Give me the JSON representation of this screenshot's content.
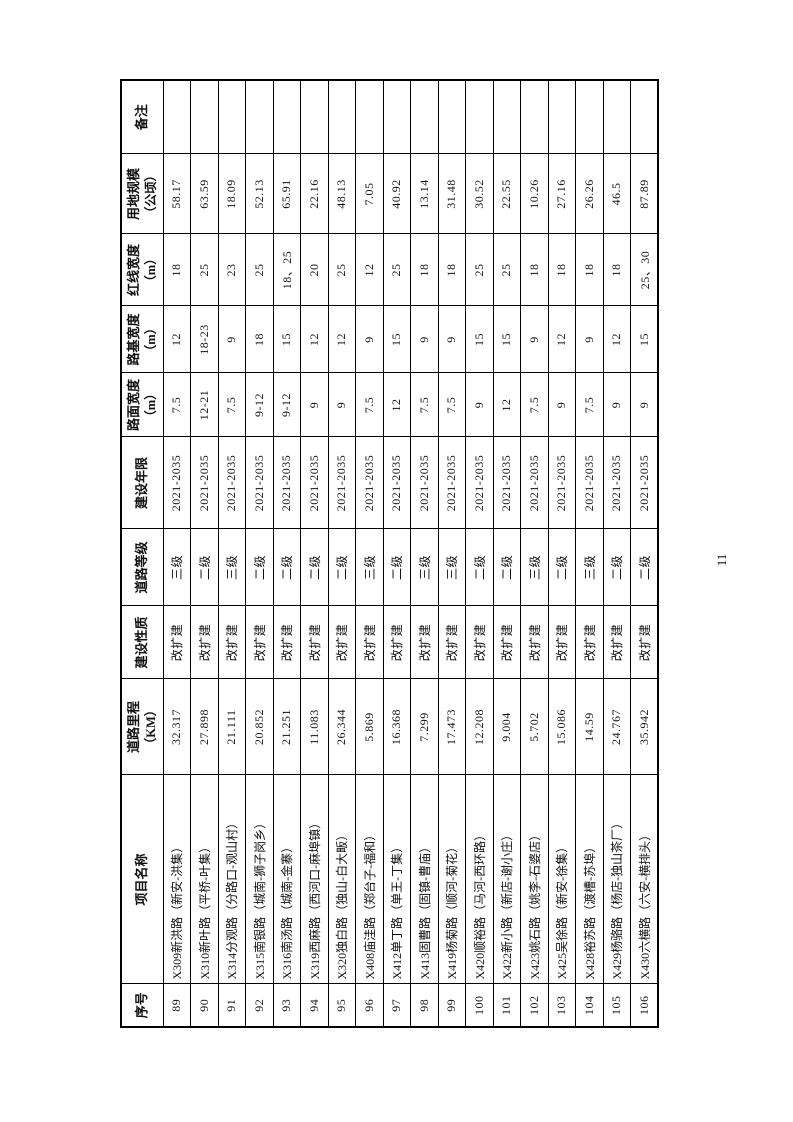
{
  "page": {
    "number": "11"
  },
  "table": {
    "headers": [
      {
        "label": "序号",
        "unit": ""
      },
      {
        "label": "项目名称",
        "unit": ""
      },
      {
        "label": "道路里程",
        "unit": "（KM）"
      },
      {
        "label": "建设性质",
        "unit": ""
      },
      {
        "label": "道路等级",
        "unit": ""
      },
      {
        "label": "建设年限",
        "unit": ""
      },
      {
        "label": "路面宽度",
        "unit": "（m）"
      },
      {
        "label": "路基宽度",
        "unit": "（m）"
      },
      {
        "label": "红线宽度",
        "unit": "（m）"
      },
      {
        "label": "用地规模",
        "unit": "（公顷）"
      },
      {
        "label": "备注",
        "unit": ""
      }
    ],
    "rows": [
      [
        "89",
        "X309新洪路（新安-洪集）",
        "32.317",
        "改扩建",
        "三级",
        "2021-2035",
        "7.5",
        "12",
        "18",
        "58.17",
        ""
      ],
      [
        "90",
        "X310新叶路（平桥-叶集）",
        "27.898",
        "改扩建",
        "二级",
        "2021-2035",
        "12-21",
        "18-23",
        "25",
        "63.59",
        ""
      ],
      [
        "91",
        "X314分观路（分路口-观山村）",
        "21.111",
        "改扩建",
        "三级",
        "2021-2035",
        "7.5",
        "9",
        "23",
        "18.09",
        ""
      ],
      [
        "92",
        "X315南银路（城南-狮子岗乡）",
        "20.852",
        "改扩建",
        "二级",
        "2021-2035",
        "9-12",
        "18",
        "25",
        "52.13",
        ""
      ],
      [
        "93",
        "X316南汤路（城南-金寨）",
        "21.251",
        "改扩建",
        "二级",
        "2021-2035",
        "9-12",
        "15",
        "18、25",
        "65.91",
        ""
      ],
      [
        "94",
        "X319西麻路（西河口-麻埠镇）",
        "11.083",
        "改扩建",
        "二级",
        "2021-2035",
        "9",
        "12",
        "20",
        "22.16",
        ""
      ],
      [
        "95",
        "X320独白路（独山-白大畈）",
        "26.344",
        "改扩建",
        "二级",
        "2021-2035",
        "9",
        "12",
        "25",
        "48.13",
        ""
      ],
      [
        "96",
        "X408庙洼路（郑台子-福和）",
        "5.869",
        "改扩建",
        "三级",
        "2021-2035",
        "7.5",
        "9",
        "12",
        "7.05",
        ""
      ],
      [
        "97",
        "X412单丁路（单王-丁集）",
        "16.368",
        "改扩建",
        "二级",
        "2021-2035",
        "12",
        "15",
        "25",
        "40.92",
        ""
      ],
      [
        "98",
        "X413固曹路（固镇-曹庙）",
        "7.299",
        "改扩建",
        "三级",
        "2021-2035",
        "7.5",
        "9",
        "18",
        "13.14",
        ""
      ],
      [
        "99",
        "X419杨菊路（顺河-菊花）",
        "17.473",
        "改扩建",
        "三级",
        "2021-2035",
        "7.5",
        "9",
        "18",
        "31.48",
        ""
      ],
      [
        "100",
        "X420顺裕路（马河-西环路）",
        "12.208",
        "改扩建",
        "二级",
        "2021-2035",
        "9",
        "15",
        "25",
        "30.52",
        ""
      ],
      [
        "101",
        "X422新小路（新店-谢小庄）",
        "9.004",
        "改扩建",
        "二级",
        "2021-2035",
        "12",
        "15",
        "25",
        "22.55",
        ""
      ],
      [
        "102",
        "X423姚石路（姚李-石婆店）",
        "5.702",
        "改扩建",
        "三级",
        "2021-2035",
        "7.5",
        "9",
        "18",
        "10.26",
        ""
      ],
      [
        "103",
        "X425吴徐路（新安-徐集）",
        "15.086",
        "改扩建",
        "二级",
        "2021-2035",
        "9",
        "12",
        "18",
        "27.16",
        ""
      ],
      [
        "104",
        "X428裕苏路（渡槽-苏埠）",
        "14.59",
        "改扩建",
        "三级",
        "2021-2035",
        "7.5",
        "9",
        "18",
        "26.26",
        ""
      ],
      [
        "105",
        "X429杨骆路（杨店-独山茶厂）",
        "24.767",
        "改扩建",
        "二级",
        "2021-2035",
        "9",
        "12",
        "18",
        "46.5",
        ""
      ],
      [
        "106",
        "X430六横路（六安-横排头）",
        "35.942",
        "改扩建",
        "二级",
        "2021-2035",
        "9",
        "15",
        "25、30",
        "87.89",
        ""
      ]
    ]
  }
}
